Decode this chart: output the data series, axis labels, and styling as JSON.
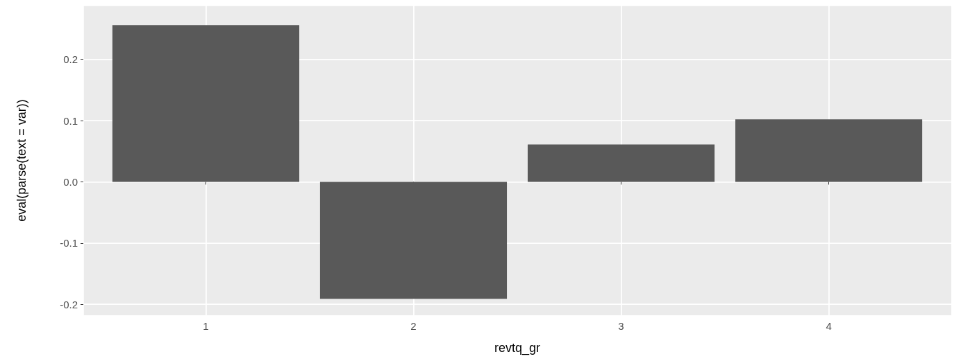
{
  "chart_data": {
    "type": "bar",
    "x": [
      1,
      2,
      3,
      4
    ],
    "values": [
      0.256,
      -0.191,
      0.061,
      0.102
    ],
    "color": "#595959",
    "xlim": [
      0.41,
      4.59
    ],
    "xticks": [
      1,
      2,
      3,
      4
    ],
    "ylim": [
      -0.218,
      0.288
    ],
    "yticks": [
      -0.2,
      -0.1,
      {
        "value": 0,
        "label": "0.0"
      },
      0.1,
      0.2
    ],
    "xlabel": "revtq_gr",
    "ylabel": "eval(parse(text = var))",
    "grid": true
  }
}
